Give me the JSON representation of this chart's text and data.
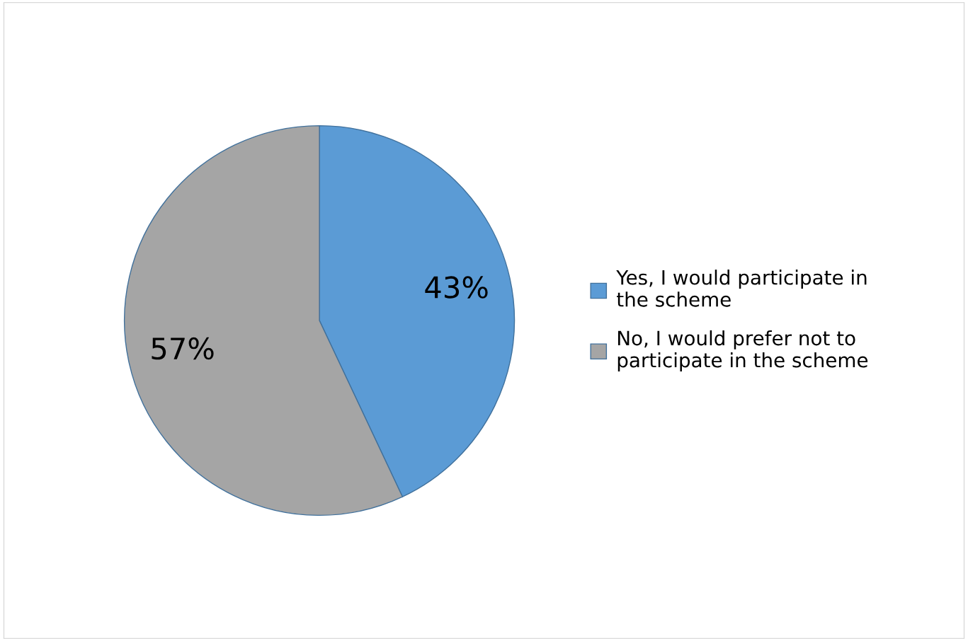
{
  "chart_data": {
    "type": "pie",
    "categories": [
      "Yes, I would participate in the scheme",
      "No, I would prefer not to participate in the scheme"
    ],
    "values": [
      43,
      57
    ],
    "value_labels": [
      "43%",
      "57%"
    ],
    "colors": [
      "#5b9bd5",
      "#a5a5a5"
    ],
    "legend": "right"
  }
}
